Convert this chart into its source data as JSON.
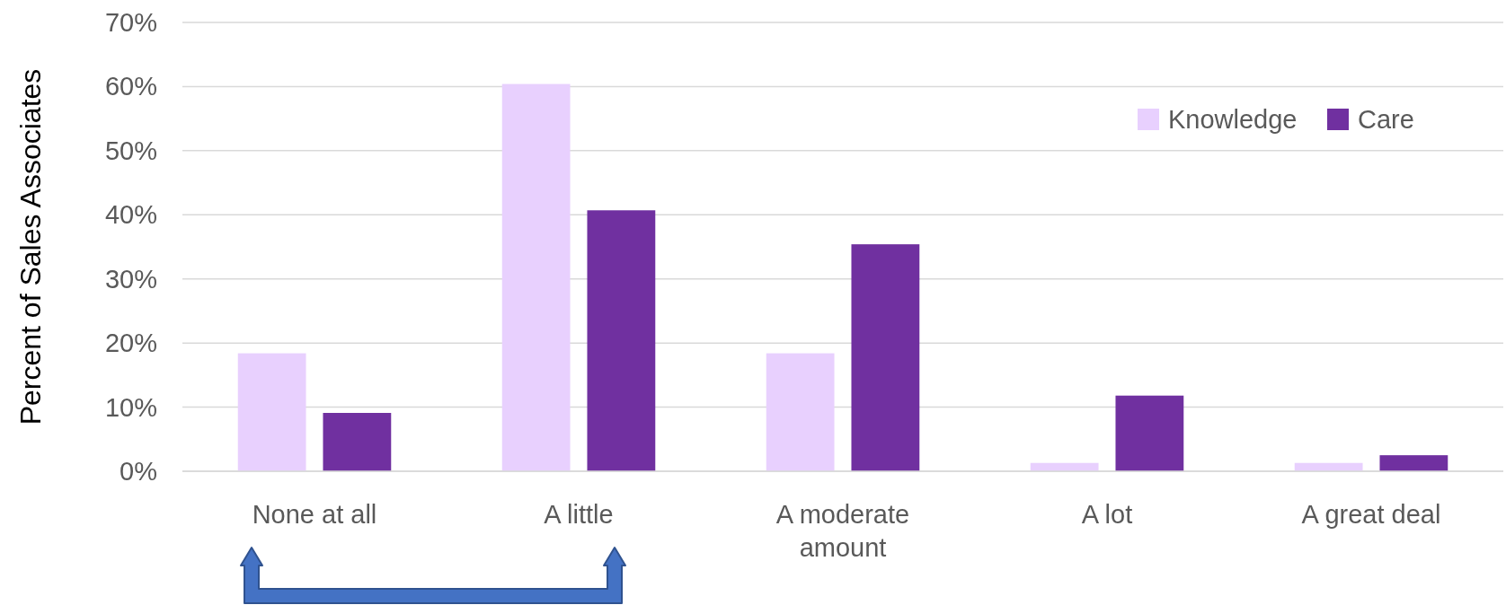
{
  "chart_data": {
    "type": "bar",
    "ylabel": "Percent of Sales Associates",
    "categories": [
      "None at all",
      "A little",
      "A moderate amount",
      "A lot",
      "A great deal"
    ],
    "series": [
      {
        "name": "Knowledge",
        "color": "#e8d0fe",
        "values": [
          18.4,
          60.4,
          18.4,
          1.3,
          1.3
        ]
      },
      {
        "name": "Care",
        "color": "#7030a0",
        "values": [
          9.1,
          40.7,
          35.4,
          11.8,
          2.5
        ]
      }
    ],
    "ylim": [
      0,
      70
    ],
    "yticks": [
      {
        "value": 0,
        "label": "0%"
      },
      {
        "value": 10,
        "label": "10%"
      },
      {
        "value": 20,
        "label": "20%"
      },
      {
        "value": 30,
        "label": "30%"
      },
      {
        "value": 40,
        "label": "40%"
      },
      {
        "value": 50,
        "label": "50%"
      },
      {
        "value": 60,
        "label": "60%"
      },
      {
        "value": 70,
        "label": "70%"
      }
    ],
    "grid": "y",
    "legend": "top right"
  }
}
